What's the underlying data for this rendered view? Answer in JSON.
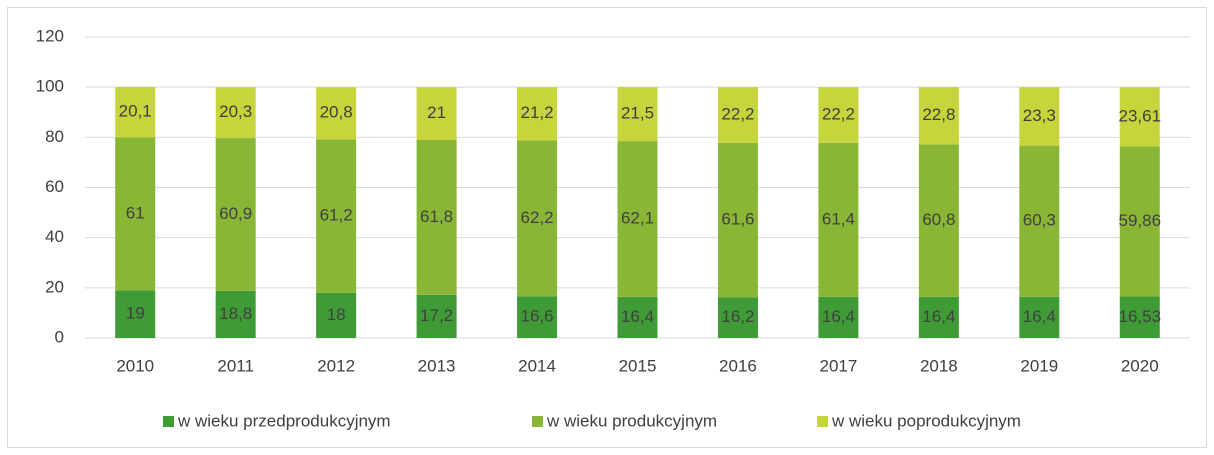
{
  "chart_data": {
    "type": "stacked_bar",
    "categories": [
      "2010",
      "2011",
      "2012",
      "2013",
      "2014",
      "2015",
      "2016",
      "2017",
      "2018",
      "2019",
      "2020"
    ],
    "series": [
      {
        "name": "w wieku przedprodukcyjnym",
        "color": "#3f9b35",
        "values": [
          19,
          18.8,
          18,
          17.2,
          16.6,
          16.4,
          16.2,
          16.4,
          16.4,
          16.4,
          16.53
        ],
        "value_labels": [
          "19",
          "18,8",
          "18",
          "17,2",
          "16,6",
          "16,4",
          "16,2",
          "16,4",
          "16,4",
          "16,4",
          "16,53"
        ]
      },
      {
        "name": "w wieku produkcyjnym",
        "color": "#89b735",
        "values": [
          61,
          60.9,
          61.2,
          61.8,
          62.2,
          62.1,
          61.6,
          61.4,
          60.8,
          60.3,
          59.86
        ],
        "value_labels": [
          "61",
          "60,9",
          "61,2",
          "61,8",
          "62,2",
          "62,1",
          "61,6",
          "61,4",
          "60,8",
          "60,3",
          "59,86"
        ]
      },
      {
        "name": "w wieku poprodukcyjnym",
        "color": "#c6d53b",
        "values": [
          20.1,
          20.3,
          20.8,
          21,
          21.2,
          21.5,
          22.2,
          22.2,
          22.8,
          23.3,
          23.61
        ],
        "value_labels": [
          "20,1",
          "20,3",
          "20,8",
          "21",
          "21,2",
          "21,5",
          "22,2",
          "22,2",
          "22,8",
          "23,3",
          "23,61"
        ]
      }
    ],
    "ylim": [
      0,
      120
    ],
    "yticks": [
      0,
      20,
      40,
      60,
      80,
      100,
      120
    ],
    "grid": true,
    "legend": "bottom"
  }
}
